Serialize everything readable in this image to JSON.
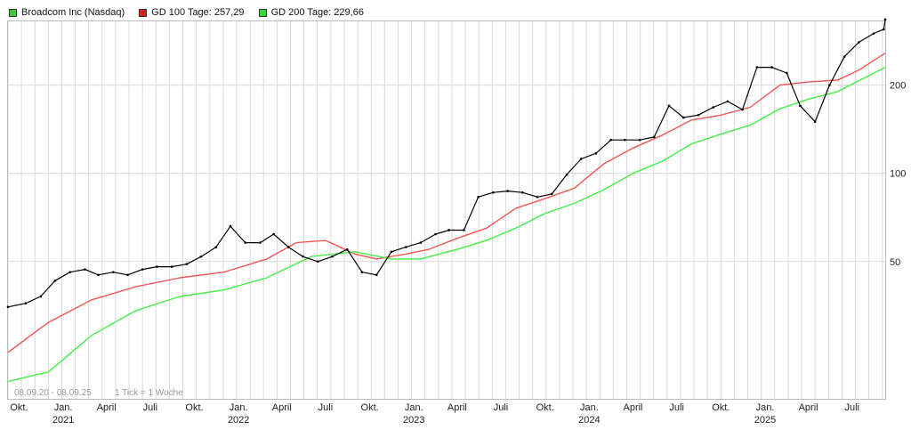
{
  "legend": [
    {
      "label": "Broadcom Inc (Nasdaq)",
      "color": "#33cc33"
    },
    {
      "label": "GD 100 Tage: 257,29",
      "color": "#e01b1b"
    },
    {
      "label": "GD 200 Tage: 229,66",
      "color": "#33dd33"
    }
  ],
  "footer": {
    "range": "08.09.20 - 08.09.25",
    "tick_info": "1 Tick = 1 Woche"
  },
  "colors": {
    "price": "#000000",
    "gd100": "#f25555",
    "gd200": "#44ee44",
    "grid": "#d9d9d9",
    "frame": "#bbbbbb"
  },
  "chart_data": {
    "type": "line",
    "y_scale": "log",
    "ylim": [
      17,
      330
    ],
    "y_ticks": [
      {
        "value": 50,
        "label": "50"
      },
      {
        "value": 100,
        "label": "100"
      },
      {
        "value": 200,
        "label": "200"
      }
    ],
    "xlim": [
      "2020-09-08",
      "2025-09-08"
    ],
    "x_month_ticks": [
      {
        "date": "2020-10-01",
        "label": "Okt."
      },
      {
        "date": "2021-01-01",
        "label": "Jan.",
        "year": "2021"
      },
      {
        "date": "2021-04-01",
        "label": "April"
      },
      {
        "date": "2021-07-01",
        "label": "Juli"
      },
      {
        "date": "2021-10-01",
        "label": "Okt."
      },
      {
        "date": "2022-01-01",
        "label": "Jan.",
        "year": "2022"
      },
      {
        "date": "2022-04-01",
        "label": "April"
      },
      {
        "date": "2022-07-01",
        "label": "Juli"
      },
      {
        "date": "2022-10-01",
        "label": "Okt."
      },
      {
        "date": "2023-01-01",
        "label": "Jan.",
        "year": "2023"
      },
      {
        "date": "2023-04-01",
        "label": "April"
      },
      {
        "date": "2023-07-01",
        "label": "Juli"
      },
      {
        "date": "2023-10-01",
        "label": "Okt."
      },
      {
        "date": "2024-01-01",
        "label": "Jan.",
        "year": "2024"
      },
      {
        "date": "2024-04-01",
        "label": "April"
      },
      {
        "date": "2024-07-01",
        "label": "Juli"
      },
      {
        "date": "2024-10-01",
        "label": "Okt."
      },
      {
        "date": "2025-01-01",
        "label": "Jan.",
        "year": "2025"
      },
      {
        "date": "2025-04-01",
        "label": "April"
      },
      {
        "date": "2025-07-01",
        "label": "Juli"
      }
    ],
    "series": [
      {
        "name": "Broadcom Inc (Nasdaq)",
        "x": [
          "2020-09-08",
          "2020-10-15",
          "2020-11-15",
          "2020-12-15",
          "2021-01-15",
          "2021-02-15",
          "2021-03-15",
          "2021-04-15",
          "2021-05-15",
          "2021-06-15",
          "2021-07-15",
          "2021-08-15",
          "2021-09-15",
          "2021-10-15",
          "2021-11-15",
          "2021-12-15",
          "2022-01-15",
          "2022-02-15",
          "2022-03-15",
          "2022-04-15",
          "2022-05-15",
          "2022-06-15",
          "2022-07-15",
          "2022-08-15",
          "2022-09-15",
          "2022-10-15",
          "2022-11-15",
          "2022-12-15",
          "2023-01-15",
          "2023-02-15",
          "2023-03-15",
          "2023-04-15",
          "2023-05-15",
          "2023-06-15",
          "2023-07-15",
          "2023-08-15",
          "2023-09-15",
          "2023-10-15",
          "2023-11-15",
          "2023-12-15",
          "2024-01-15",
          "2024-02-15",
          "2024-03-15",
          "2024-04-15",
          "2024-05-15",
          "2024-06-15",
          "2024-07-15",
          "2024-08-15",
          "2024-09-15",
          "2024-10-15",
          "2024-11-15",
          "2024-12-15",
          "2025-01-15",
          "2025-02-15",
          "2025-03-15",
          "2025-04-15",
          "2025-05-15",
          "2025-06-15",
          "2025-07-15",
          "2025-08-15",
          "2025-09-05",
          "2025-09-08"
        ],
        "values": [
          35,
          36,
          38,
          43,
          46,
          47,
          45,
          46,
          45,
          47,
          48,
          48,
          49,
          52,
          56,
          66,
          58,
          58,
          62,
          56,
          52,
          50,
          52,
          55,
          46,
          45,
          54,
          56,
          58,
          62,
          64,
          64,
          83,
          86,
          87,
          86,
          83,
          85,
          99,
          112,
          117,
          130,
          130,
          130,
          133,
          170,
          155,
          158,
          168,
          176,
          165,
          230,
          230,
          220,
          170,
          150,
          200,
          250,
          280,
          300,
          310,
          335
        ]
      },
      {
        "name": "GD 100 Tage: 257,29",
        "x": [
          "2020-09-08",
          "2020-12-01",
          "2021-03-01",
          "2021-06-01",
          "2021-09-01",
          "2021-12-01",
          "2022-03-01",
          "2022-05-01",
          "2022-07-01",
          "2022-09-01",
          "2022-10-15",
          "2022-12-15",
          "2023-02-01",
          "2023-04-01",
          "2023-06-01",
          "2023-08-01",
          "2023-10-01",
          "2023-12-01",
          "2024-02-01",
          "2024-04-01",
          "2024-06-01",
          "2024-08-01",
          "2024-10-01",
          "2024-12-01",
          "2025-02-01",
          "2025-04-01",
          "2025-06-01",
          "2025-07-15",
          "2025-09-08"
        ],
        "values": [
          24.5,
          31,
          37,
          41,
          44,
          46,
          51,
          58,
          59,
          53,
          51,
          53,
          55,
          60,
          65,
          76,
          82,
          89,
          108,
          122,
          135,
          152,
          158,
          168,
          200,
          205,
          208,
          225,
          257
        ]
      },
      {
        "name": "GD 200 Tage: 229,66",
        "x": [
          "2020-09-08",
          "2020-12-01",
          "2021-03-01",
          "2021-06-01",
          "2021-09-01",
          "2021-12-01",
          "2022-03-01",
          "2022-06-01",
          "2022-09-01",
          "2022-11-15",
          "2023-01-15",
          "2023-04-01",
          "2023-06-01",
          "2023-08-01",
          "2023-10-01",
          "2023-12-01",
          "2024-02-01",
          "2024-04-01",
          "2024-06-01",
          "2024-08-01",
          "2024-10-01",
          "2024-12-01",
          "2025-02-01",
          "2025-04-01",
          "2025-06-01",
          "2025-09-08"
        ],
        "values": [
          19.5,
          21,
          28,
          34,
          38,
          40,
          44,
          52,
          54,
          51,
          51,
          55,
          59,
          65,
          73,
          79,
          88,
          100,
          110,
          126,
          136,
          146,
          166,
          179,
          190,
          230
        ]
      }
    ]
  }
}
